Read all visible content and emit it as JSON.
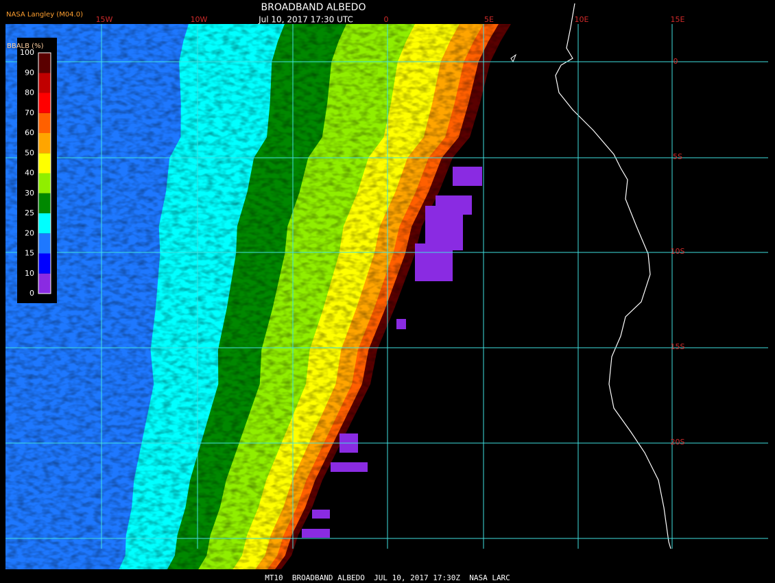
{
  "header": {
    "title": "BROADBAND ALBEDO",
    "subtitle": "Jul 10, 2017 17:30 UTC",
    "source": "NASA Langley (M04.0)"
  },
  "footer": "MT10  BROADBAND ALBEDO  JUL 10, 2017 17:30Z  NASA LARC",
  "legend": {
    "title": "BBALB (%)",
    "ticks": [
      0,
      10,
      15,
      20,
      25,
      30,
      40,
      50,
      60,
      70,
      80,
      90,
      100
    ],
    "colors": [
      "#8a2be2",
      "#0000ff",
      "#1e78ff",
      "#00ffff",
      "#008800",
      "#90ee00",
      "#ffff00",
      "#ffa500",
      "#ff6000",
      "#ff0000",
      "#c00000",
      "#5a0000"
    ]
  },
  "grid": {
    "lon_labels": [
      "15W",
      "10W",
      "0",
      "5E",
      "10E",
      "15E"
    ],
    "lat_labels": [
      "0",
      "5S",
      "10S",
      "15S",
      "20S"
    ]
  }
}
